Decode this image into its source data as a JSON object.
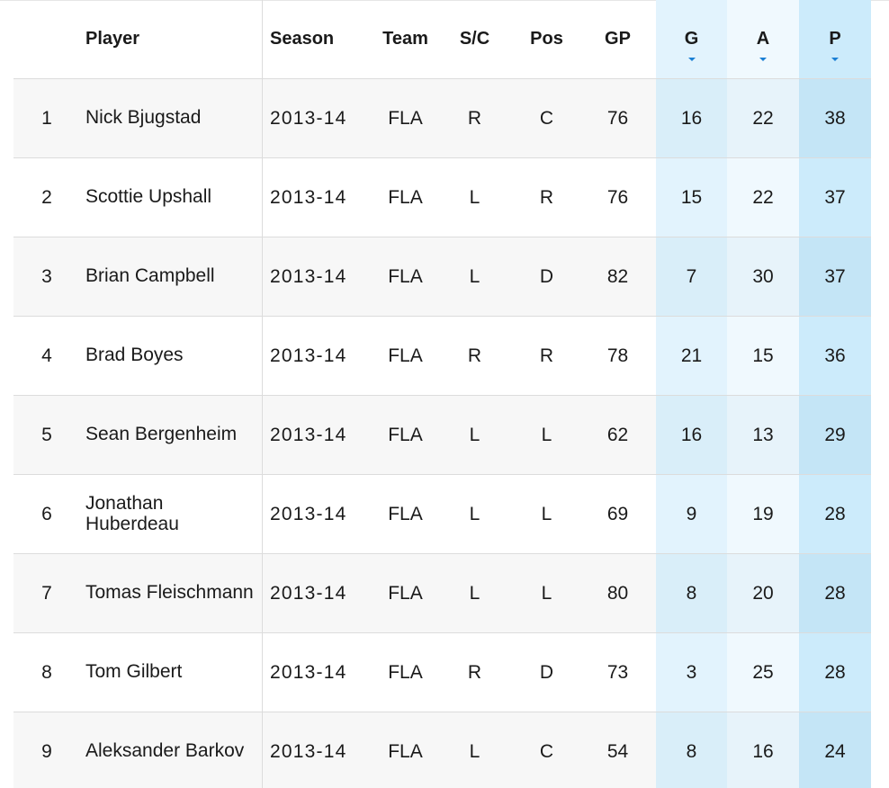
{
  "columns": {
    "rank": "",
    "player": "Player",
    "season": "Season",
    "team": "Team",
    "sc": "S/C",
    "pos": "Pos",
    "gp": "GP",
    "g": "G",
    "a": "A",
    "p": "P"
  },
  "sort_indicator": "sort-desc-caret-icon",
  "accent_color": "#1a7fd4",
  "rows": [
    {
      "rank": "1",
      "player": "Nick Bjugstad",
      "season": "2013-14",
      "team": "FLA",
      "sc": "R",
      "pos": "C",
      "gp": "76",
      "g": "16",
      "a": "22",
      "p": "38"
    },
    {
      "rank": "2",
      "player": "Scottie Upshall",
      "season": "2013-14",
      "team": "FLA",
      "sc": "L",
      "pos": "R",
      "gp": "76",
      "g": "15",
      "a": "22",
      "p": "37"
    },
    {
      "rank": "3",
      "player": "Brian Campbell",
      "season": "2013-14",
      "team": "FLA",
      "sc": "L",
      "pos": "D",
      "gp": "82",
      "g": "7",
      "a": "30",
      "p": "37"
    },
    {
      "rank": "4",
      "player": "Brad Boyes",
      "season": "2013-14",
      "team": "FLA",
      "sc": "R",
      "pos": "R",
      "gp": "78",
      "g": "21",
      "a": "15",
      "p": "36"
    },
    {
      "rank": "5",
      "player": "Sean Bergenheim",
      "season": "2013-14",
      "team": "FLA",
      "sc": "L",
      "pos": "L",
      "gp": "62",
      "g": "16",
      "a": "13",
      "p": "29"
    },
    {
      "rank": "6",
      "player": "Jonathan Huberdeau",
      "season": "2013-14",
      "team": "FLA",
      "sc": "L",
      "pos": "L",
      "gp": "69",
      "g": "9",
      "a": "19",
      "p": "28"
    },
    {
      "rank": "7",
      "player": "Tomas Fleischmann",
      "season": "2013-14",
      "team": "FLA",
      "sc": "L",
      "pos": "L",
      "gp": "80",
      "g": "8",
      "a": "20",
      "p": "28"
    },
    {
      "rank": "8",
      "player": "Tom Gilbert",
      "season": "2013-14",
      "team": "FLA",
      "sc": "R",
      "pos": "D",
      "gp": "73",
      "g": "3",
      "a": "25",
      "p": "28"
    },
    {
      "rank": "9",
      "player": "Aleksander Barkov",
      "season": "2013-14",
      "team": "FLA",
      "sc": "L",
      "pos": "C",
      "gp": "54",
      "g": "8",
      "a": "16",
      "p": "24"
    }
  ]
}
